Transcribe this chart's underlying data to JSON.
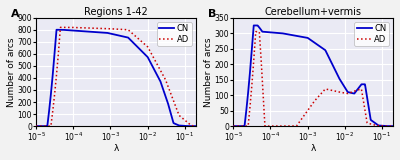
{
  "panel_A": {
    "title": "Regions 1-42",
    "xlabel": "λ",
    "ylabel": "Number of arcs",
    "xlim_log": [
      -5,
      -0.7
    ],
    "ylim": [
      0,
      900
    ],
    "yticks": [
      0,
      100,
      200,
      300,
      400,
      500,
      600,
      700,
      800,
      900
    ],
    "CN_color": "#0000cc",
    "AD_color": "#cc0000",
    "CN_lw": 1.3,
    "AD_lw": 1.1
  },
  "panel_B": {
    "title": "Cerebellum+vermis",
    "xlabel": "λ",
    "ylabel": "Number of arcs",
    "xlim_log": [
      -5,
      -0.7
    ],
    "ylim": [
      0,
      350
    ],
    "yticks": [
      0,
      50,
      100,
      150,
      200,
      250,
      300,
      350
    ],
    "CN_color": "#0000cc",
    "AD_color": "#cc0000",
    "CN_lw": 1.3,
    "AD_lw": 1.1
  },
  "bg_color": "#eaeaf4",
  "grid_color": "#ffffff",
  "fig_bg": "#f2f2f2",
  "legend_labels": [
    "CN",
    "AD"
  ],
  "label_fontsize": 6.5,
  "title_fontsize": 7,
  "tick_fontsize": 5.5,
  "legend_fontsize": 6
}
